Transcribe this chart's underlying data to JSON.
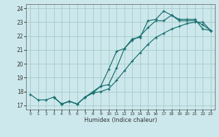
{
  "xlabel": "Humidex (Indice chaleur)",
  "bg_color": "#cce8ec",
  "line_color": "#1a7070",
  "grid_color": "#aacccc",
  "xlim": [
    -0.5,
    23.5
  ],
  "ylim": [
    16.7,
    24.3
  ],
  "yticks": [
    17,
    18,
    19,
    20,
    21,
    22,
    23,
    24
  ],
  "xticks": [
    0,
    1,
    2,
    3,
    4,
    5,
    6,
    7,
    8,
    9,
    10,
    11,
    12,
    13,
    14,
    15,
    16,
    17,
    18,
    19,
    20,
    21,
    22,
    23
  ],
  "line1_x": [
    0,
    1,
    2,
    3,
    4,
    5,
    6,
    7,
    8,
    9,
    10,
    11,
    12,
    13,
    14,
    15,
    16,
    17,
    18,
    19,
    20,
    21,
    22,
    23
  ],
  "line1_y": [
    17.8,
    17.4,
    17.4,
    17.6,
    17.1,
    17.3,
    17.1,
    17.6,
    18.0,
    18.4,
    18.5,
    19.7,
    21.1,
    21.8,
    21.9,
    23.1,
    23.2,
    23.8,
    23.5,
    23.2,
    23.2,
    23.2,
    22.5,
    22.4
  ],
  "line2_x": [
    3,
    4,
    5,
    6,
    7,
    8,
    9,
    10,
    11,
    12,
    13,
    14,
    15,
    16,
    17,
    18,
    19,
    20,
    21,
    22,
    23
  ],
  "line2_y": [
    17.6,
    17.1,
    17.3,
    17.1,
    17.6,
    17.9,
    18.4,
    19.6,
    20.9,
    21.1,
    21.7,
    22.0,
    22.6,
    23.1,
    23.1,
    23.5,
    23.1,
    23.1,
    23.1,
    22.8,
    22.4
  ],
  "line3_x": [
    3,
    4,
    5,
    6,
    7,
    8,
    9,
    10,
    11,
    12,
    13,
    14,
    15,
    16,
    17,
    18,
    19,
    20,
    21,
    22,
    23
  ],
  "line3_y": [
    17.6,
    17.1,
    17.3,
    17.1,
    17.6,
    17.9,
    18.0,
    18.2,
    18.8,
    19.5,
    20.2,
    20.8,
    21.4,
    21.9,
    22.2,
    22.5,
    22.7,
    22.9,
    23.0,
    23.0,
    22.4
  ]
}
